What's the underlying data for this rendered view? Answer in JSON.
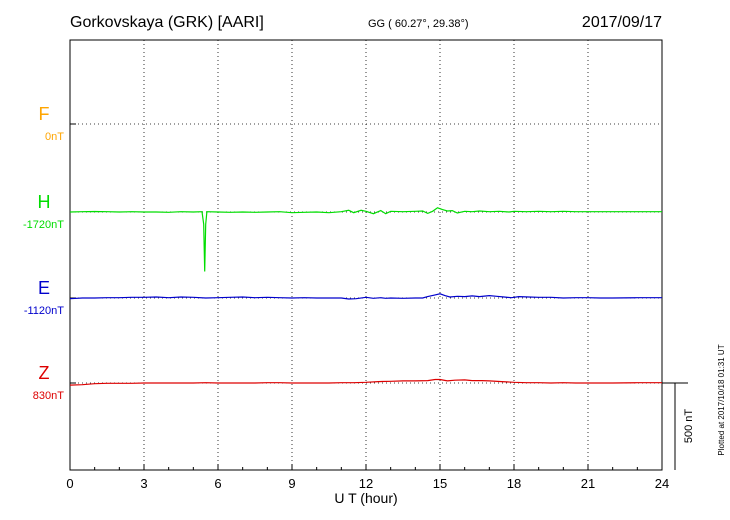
{
  "chart_data": {
    "type": "line",
    "title": "Gorkovskaya (GRK)  [AARI]",
    "coords": "GG ( 60.27°,  29.38°)",
    "date": "2017/09/17",
    "xlabel": "U T (hour)",
    "xlim": [
      0,
      24
    ],
    "xticks": [
      "0",
      "3",
      "6",
      "9",
      "12",
      "15",
      "18",
      "21",
      "24"
    ],
    "grid": true,
    "scale_bar_label": "500 nT",
    "plotted_note": "Plotted at 2017/10/18 01:31  UT",
    "series": [
      {
        "name": "F",
        "baseline_label": "0nT",
        "color": "#ffa500",
        "points": []
      },
      {
        "name": "H",
        "baseline_label": "-1720nT",
        "color": "#00dd00",
        "points": [
          [
            0,
            0
          ],
          [
            0.5,
            2
          ],
          [
            1,
            3
          ],
          [
            1.5,
            2
          ],
          [
            2,
            0
          ],
          [
            2.5,
            2
          ],
          [
            3,
            0
          ],
          [
            3.5,
            0
          ],
          [
            4,
            -2
          ],
          [
            4.5,
            2
          ],
          [
            5,
            0
          ],
          [
            5.35,
            2
          ],
          [
            5.42,
            -70
          ],
          [
            5.46,
            -342
          ],
          [
            5.5,
            -70
          ],
          [
            5.55,
            2
          ],
          [
            6,
            0
          ],
          [
            6.5,
            -2
          ],
          [
            7,
            0
          ],
          [
            7.5,
            -2
          ],
          [
            8,
            0
          ],
          [
            8.5,
            2
          ],
          [
            9,
            -4
          ],
          [
            9.5,
            -2
          ],
          [
            10,
            0
          ],
          [
            10.5,
            -4
          ],
          [
            11,
            2
          ],
          [
            11.3,
            10
          ],
          [
            11.5,
            -4
          ],
          [
            11.8,
            10
          ],
          [
            12,
            4
          ],
          [
            12.3,
            -10
          ],
          [
            12.6,
            8
          ],
          [
            12.8,
            -10
          ],
          [
            13,
            4
          ],
          [
            13.5,
            2
          ],
          [
            14,
            4
          ],
          [
            14.3,
            6
          ],
          [
            14.5,
            -8
          ],
          [
            14.7,
            4
          ],
          [
            14.9,
            24
          ],
          [
            15.1,
            14
          ],
          [
            15.3,
            6
          ],
          [
            15.5,
            8
          ],
          [
            15.7,
            -6
          ],
          [
            16,
            4
          ],
          [
            16.3,
            2
          ],
          [
            16.6,
            6
          ],
          [
            17,
            2
          ],
          [
            17.4,
            4
          ],
          [
            17.8,
            0
          ],
          [
            18,
            4
          ],
          [
            18.5,
            2
          ],
          [
            19,
            4
          ],
          [
            19.5,
            2
          ],
          [
            20,
            4
          ],
          [
            20.5,
            2
          ],
          [
            21,
            2
          ],
          [
            22,
            2
          ],
          [
            23,
            2
          ],
          [
            24,
            2
          ]
        ]
      },
      {
        "name": "E",
        "baseline_label": "-1120nT",
        "color": "#0000cc",
        "points": [
          [
            0,
            -4
          ],
          [
            0.5,
            0
          ],
          [
            1,
            0
          ],
          [
            1.5,
            2
          ],
          [
            2,
            2
          ],
          [
            2.5,
            4
          ],
          [
            3,
            4
          ],
          [
            3.5,
            6
          ],
          [
            4,
            2
          ],
          [
            4.5,
            6
          ],
          [
            5,
            4
          ],
          [
            5.5,
            0
          ],
          [
            6,
            2
          ],
          [
            6.5,
            4
          ],
          [
            7,
            6
          ],
          [
            7.5,
            2
          ],
          [
            8,
            4
          ],
          [
            8.5,
            2
          ],
          [
            9,
            0
          ],
          [
            9.5,
            2
          ],
          [
            10,
            0
          ],
          [
            10.5,
            0
          ],
          [
            11,
            0
          ],
          [
            11.3,
            -6
          ],
          [
            11.6,
            -4
          ],
          [
            12,
            4
          ],
          [
            12.3,
            -2
          ],
          [
            12.6,
            2
          ],
          [
            12.8,
            -2
          ],
          [
            13,
            0
          ],
          [
            13.5,
            -2
          ],
          [
            14,
            0
          ],
          [
            14.3,
            0
          ],
          [
            14.5,
            8
          ],
          [
            14.8,
            18
          ],
          [
            15,
            24
          ],
          [
            15.2,
            14
          ],
          [
            15.4,
            6
          ],
          [
            15.7,
            10
          ],
          [
            16,
            8
          ],
          [
            16.3,
            12
          ],
          [
            16.6,
            8
          ],
          [
            17,
            14
          ],
          [
            17.3,
            10
          ],
          [
            17.6,
            6
          ],
          [
            17.9,
            2
          ],
          [
            18.2,
            8
          ],
          [
            18.6,
            6
          ],
          [
            19,
            4
          ],
          [
            19.5,
            4
          ],
          [
            20,
            0
          ],
          [
            20.5,
            2
          ],
          [
            21,
            2
          ],
          [
            21.5,
            0
          ],
          [
            22,
            0
          ],
          [
            23,
            2
          ],
          [
            24,
            2
          ]
        ]
      },
      {
        "name": "Z",
        "baseline_label": "830nT",
        "color": "#dd0000",
        "points": [
          [
            0,
            -12
          ],
          [
            0.5,
            -10
          ],
          [
            1,
            -4
          ],
          [
            1.5,
            -2
          ],
          [
            2,
            -2
          ],
          [
            2.5,
            -2
          ],
          [
            3,
            0
          ],
          [
            3.5,
            0
          ],
          [
            4,
            0
          ],
          [
            4.5,
            0
          ],
          [
            5,
            0
          ],
          [
            5.5,
            2
          ],
          [
            6,
            0
          ],
          [
            6.5,
            0
          ],
          [
            7,
            0
          ],
          [
            7.5,
            0
          ],
          [
            8,
            2
          ],
          [
            8.5,
            2
          ],
          [
            9,
            0
          ],
          [
            9.5,
            0
          ],
          [
            10,
            0
          ],
          [
            10.5,
            0
          ],
          [
            11,
            2
          ],
          [
            11.5,
            2
          ],
          [
            12,
            4
          ],
          [
            12.5,
            8
          ],
          [
            13,
            10
          ],
          [
            13.5,
            12
          ],
          [
            14,
            12
          ],
          [
            14.5,
            14
          ],
          [
            14.8,
            20
          ],
          [
            15,
            20
          ],
          [
            15.3,
            12
          ],
          [
            15.6,
            16
          ],
          [
            16,
            18
          ],
          [
            16.3,
            14
          ],
          [
            16.7,
            14
          ],
          [
            17,
            12
          ],
          [
            17.5,
            8
          ],
          [
            18,
            4
          ],
          [
            18.5,
            2
          ],
          [
            19,
            2
          ],
          [
            19.5,
            0
          ],
          [
            20,
            2
          ],
          [
            20.5,
            0
          ],
          [
            21,
            0
          ],
          [
            21.5,
            0
          ],
          [
            22,
            0
          ],
          [
            23,
            2
          ],
          [
            24,
            2
          ]
        ]
      }
    ]
  }
}
